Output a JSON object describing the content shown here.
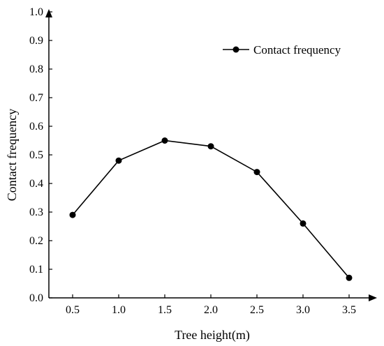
{
  "chart_data": {
    "type": "line",
    "title": "",
    "xlabel": "Tree height(m)",
    "ylabel": "Contact frequency",
    "x": [
      "0.5",
      "1.0",
      "1.5",
      "2.0",
      "2.5",
      "3.0",
      "3.5"
    ],
    "series": [
      {
        "name": "Contact frequency",
        "values": [
          0.29,
          0.48,
          0.55,
          0.53,
          0.44,
          0.26,
          0.07
        ]
      }
    ],
    "ylim": [
      0,
      1.0
    ],
    "yticks": [
      "0.0",
      "0.1",
      "0.2",
      "0.3",
      "0.4",
      "0.5",
      "0.6",
      "0.7",
      "0.8",
      "0.9",
      "1.0"
    ],
    "grid": false,
    "legend_position": "top-right",
    "colors": {
      "line": "#000000",
      "marker": "#000000",
      "axis": "#000000"
    }
  }
}
